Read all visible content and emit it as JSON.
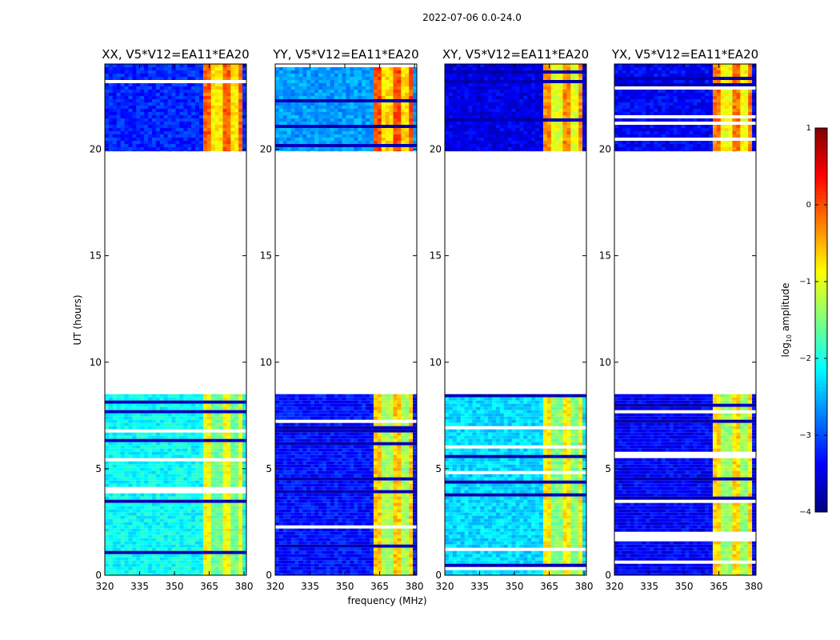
{
  "chart_data": {
    "type": "heatmap",
    "suptitle": "2022-07-06 0.0-24.0",
    "xlabel": "frequency (MHz)",
    "ylabel": "UT (hours)",
    "xlim": [
      320,
      381
    ],
    "ylim": [
      0,
      24
    ],
    "x_ticks": [
      320,
      335,
      350,
      365,
      380
    ],
    "x_tick_labels": [
      "320",
      "335",
      "350",
      "365",
      "380"
    ],
    "y_ticks": [
      0,
      5,
      10,
      15,
      20
    ],
    "y_tick_labels": [
      "0",
      "5",
      "10",
      "15",
      "20"
    ],
    "data_ranges_hours": [
      [
        0,
        8.5
      ],
      [
        19.9,
        24
      ]
    ],
    "empty_range_hours": [
      8.5,
      19.9
    ],
    "strong_band_mhz": [
      363,
      380
    ],
    "panels": [
      {
        "title": "XX, V5*V12=EA11*EA20",
        "base_low": -2.1,
        "base_high": -3.2,
        "band_level_low": -1.2,
        "band_level_high": -0.4
      },
      {
        "title": "YY, V5*V12=EA11*EA20",
        "base_low": -3.3,
        "base_high": -2.6,
        "band_level_low": -0.9,
        "band_level_high": -0.3
      },
      {
        "title": "XY, V5*V12=EA11*EA20",
        "base_low": -2.3,
        "base_high": -3.5,
        "band_level_low": -1.1,
        "band_level_high": -0.6
      },
      {
        "title": "YX, V5*V12=EA11*EA20",
        "base_low": -3.4,
        "base_high": -3.4,
        "band_level_low": -1.0,
        "band_level_high": -0.5
      }
    ],
    "colorbar": {
      "label": "log10 amplitude",
      "label_main": "log",
      "label_sub": "10",
      "label_rest": " amplitude",
      "vmin": -4,
      "vmax": 1,
      "ticks": [
        1,
        0,
        -1,
        -2,
        -3,
        -4
      ],
      "tick_labels": [
        "1",
        "0",
        "−1",
        "−2",
        "−3",
        "−4"
      ],
      "colormap": "jet"
    }
  }
}
